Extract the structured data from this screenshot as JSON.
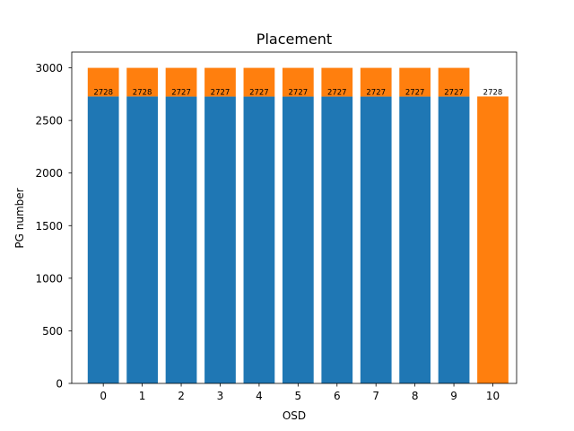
{
  "chart_data": {
    "type": "bar",
    "title": "Placement",
    "xlabel": "OSD",
    "ylabel": "PG number",
    "categories": [
      "0",
      "1",
      "2",
      "3",
      "4",
      "5",
      "6",
      "7",
      "8",
      "9",
      "10"
    ],
    "series": [
      {
        "stack": "bottom",
        "color": "#1f77b4",
        "values": [
          2728,
          2728,
          2727,
          2727,
          2727,
          2727,
          2727,
          2727,
          2727,
          2727,
          0
        ]
      },
      {
        "stack": "top",
        "color": "#ff7f0e",
        "values": [
          272,
          272,
          273,
          273,
          273,
          273,
          273,
          273,
          273,
          273,
          2728
        ]
      }
    ],
    "bar_labels": [
      "2728",
      "2728",
      "2727",
      "2727",
      "2727",
      "2727",
      "2727",
      "2727",
      "2727",
      "2727",
      "2728"
    ],
    "ylim": [
      0,
      3150
    ],
    "yticks": [
      0,
      500,
      1000,
      1500,
      2000,
      2500,
      3000
    ],
    "grid": false,
    "legend": "none"
  }
}
